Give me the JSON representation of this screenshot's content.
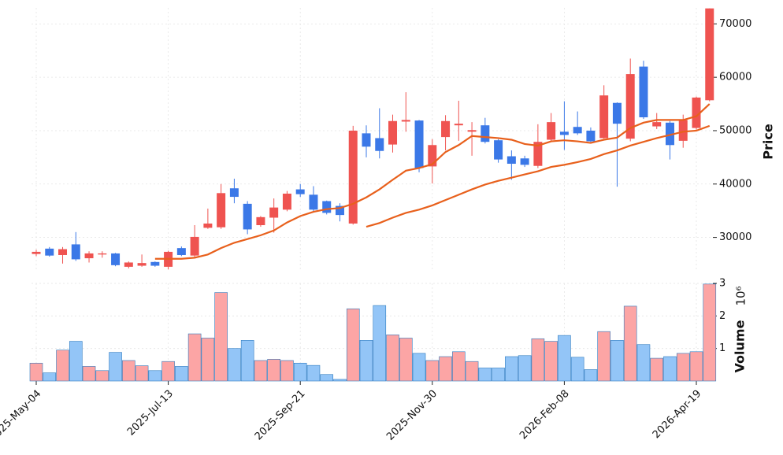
{
  "chart_data": {
    "type": "candlestick",
    "x": [
      "2025-May-04",
      "2025-May-11",
      "2025-May-18",
      "2025-May-25",
      "2025-Jun-01",
      "2025-Jun-08",
      "2025-Jun-15",
      "2025-Jun-22",
      "2025-Jun-29",
      "2025-Jul-06",
      "2025-Jul-13",
      "2025-Jul-20",
      "2025-Jul-27",
      "2025-Aug-03",
      "2025-Aug-10",
      "2025-Aug-17",
      "2025-Aug-24",
      "2025-Aug-31",
      "2025-Sep-07",
      "2025-Sep-14",
      "2025-Sep-21",
      "2025-Sep-28",
      "2025-Oct-05",
      "2025-Oct-12",
      "2025-Oct-19",
      "2025-Oct-26",
      "2025-Nov-02",
      "2025-Nov-09",
      "2025-Nov-16",
      "2025-Nov-23",
      "2025-Nov-30",
      "2025-Dec-07",
      "2025-Dec-14",
      "2025-Dec-21",
      "2025-Dec-28",
      "2026-Jan-04",
      "2026-Jan-11",
      "2026-Jan-18",
      "2026-Jan-25",
      "2026-Feb-01",
      "2026-Feb-08",
      "2026-Feb-15",
      "2026-Feb-22",
      "2026-Mar-01",
      "2026-Mar-08",
      "2026-Mar-15",
      "2026-Mar-22",
      "2026-Mar-29",
      "2026-Apr-05",
      "2026-Apr-12",
      "2026-Apr-19",
      "2026-Apr-26"
    ],
    "open": [
      26900,
      27900,
      26700,
      28700,
      26100,
      26800,
      27000,
      24500,
      24700,
      25400,
      24500,
      28000,
      26600,
      31800,
      31900,
      39200,
      36300,
      32300,
      33700,
      35200,
      39000,
      38000,
      36800,
      35900,
      32600,
      49500,
      48600,
      47400,
      51700,
      51900,
      43300,
      48800,
      51000,
      49800,
      51000,
      48200,
      45200,
      44800,
      43400,
      48300,
      49800,
      50700,
      50000,
      48600,
      55200,
      48500,
      62000,
      50800,
      51500,
      48100,
      50500,
      55700
    ],
    "high": [
      27700,
      28200,
      28200,
      31000,
      27400,
      27400,
      27100,
      25500,
      26800,
      25500,
      27500,
      28300,
      32300,
      35400,
      40000,
      41000,
      36800,
      34000,
      37300,
      38700,
      40000,
      39600,
      36900,
      36400,
      50900,
      51000,
      54200,
      53000,
      57200,
      52000,
      48400,
      52900,
      55600,
      51600,
      52400,
      48400,
      46300,
      45300,
      51200,
      53300,
      55500,
      53600,
      50600,
      58500,
      55300,
      63500,
      63100,
      53300,
      51800,
      53000,
      56400,
      72900
    ],
    "low": [
      26500,
      26400,
      25100,
      25600,
      25300,
      26200,
      24600,
      24200,
      24500,
      24500,
      24000,
      26500,
      26300,
      31600,
      31600,
      36400,
      30600,
      32000,
      30900,
      34900,
      37600,
      34700,
      34300,
      33000,
      32400,
      45000,
      44800,
      45900,
      49800,
      42200,
      40100,
      46300,
      48100,
      45300,
      47600,
      44000,
      40800,
      43200,
      43000,
      48000,
      46400,
      49200,
      47600,
      48500,
      39500,
      48000,
      52200,
      50300,
      44600,
      46800,
      50200,
      55500
    ],
    "close": [
      27300,
      26600,
      27800,
      25900,
      27000,
      27000,
      24800,
      25300,
      25200,
      24700,
      27300,
      26700,
      30100,
      32600,
      38300,
      37600,
      31500,
      33800,
      35600,
      38200,
      38100,
      35200,
      34600,
      34200,
      50000,
      47000,
      46200,
      51800,
      52000,
      43000,
      47300,
      51800,
      51300,
      50100,
      47900,
      44600,
      43800,
      43600,
      47900,
      51600,
      49200,
      49500,
      48000,
      56600,
      51300,
      60600,
      52500,
      51600,
      47300,
      52000,
      56200,
      72900
    ],
    "volume": [
      550000,
      250000,
      950000,
      1220000,
      450000,
      320000,
      880000,
      630000,
      470000,
      320000,
      600000,
      450000,
      1450000,
      1320000,
      2720000,
      1000000,
      1250000,
      630000,
      670000,
      630000,
      550000,
      480000,
      200000,
      50000,
      2220000,
      1250000,
      2320000,
      1420000,
      1320000,
      850000,
      630000,
      750000,
      900000,
      600000,
      400000,
      400000,
      750000,
      780000,
      1300000,
      1220000,
      1400000,
      730000,
      350000,
      1520000,
      1250000,
      2300000,
      1120000,
      700000,
      750000,
      850000,
      900000,
      2980000
    ],
    "moving_averages": [
      {
        "color": "#e8601c",
        "values": [
          null,
          null,
          null,
          null,
          null,
          null,
          null,
          null,
          null,
          26000,
          26000,
          26000,
          26200,
          26800,
          28000,
          29000,
          29700,
          30400,
          31300,
          32800,
          34000,
          34800,
          35300,
          35500,
          36300,
          37500,
          39000,
          40800,
          42500,
          43000,
          43700,
          46000,
          47300,
          49000,
          48800,
          48600,
          48300,
          47500,
          47200,
          48000,
          48200,
          48000,
          47700,
          48300,
          48700,
          50500,
          51500,
          52000,
          52000,
          52000,
          52700,
          55000
        ]
      },
      {
        "color": "#e8601c",
        "values": [
          null,
          null,
          null,
          null,
          null,
          null,
          null,
          null,
          null,
          null,
          null,
          null,
          null,
          null,
          null,
          null,
          null,
          null,
          null,
          null,
          null,
          null,
          null,
          null,
          null,
          32000,
          32700,
          33700,
          34600,
          35200,
          36000,
          37000,
          38000,
          39000,
          39900,
          40600,
          41200,
          41800,
          42400,
          43200,
          43600,
          44100,
          44700,
          45600,
          46300,
          47200,
          47900,
          48600,
          49200,
          49800,
          50000,
          50900
        ]
      }
    ],
    "up_color": "#ef5350",
    "down_color": "#3b78e7",
    "volume_up_color": "#fca5a5",
    "volume_down_color": "#93c5f7",
    "volume_edge_color": "#2f7bbf",
    "ylabel": "Price",
    "ylim": [
      23600,
      73000
    ],
    "yticks": [
      30000,
      40000,
      50000,
      60000,
      70000
    ],
    "volume_label": "Volume",
    "volume_exponent": "10⁶",
    "volume_ylim": [
      0,
      3000000
    ],
    "volume_yticks": [
      {
        "value": 1000000,
        "label": "1"
      },
      {
        "value": 2000000,
        "label": "2"
      },
      {
        "value": 3000000,
        "label": "3"
      }
    ],
    "xticks": [
      "2025-May-04",
      "2025-Jul-13",
      "2025-Sep-21",
      "2025-Nov-30",
      "2026-Feb-08",
      "2026-Apr-19"
    ],
    "grid": true
  }
}
